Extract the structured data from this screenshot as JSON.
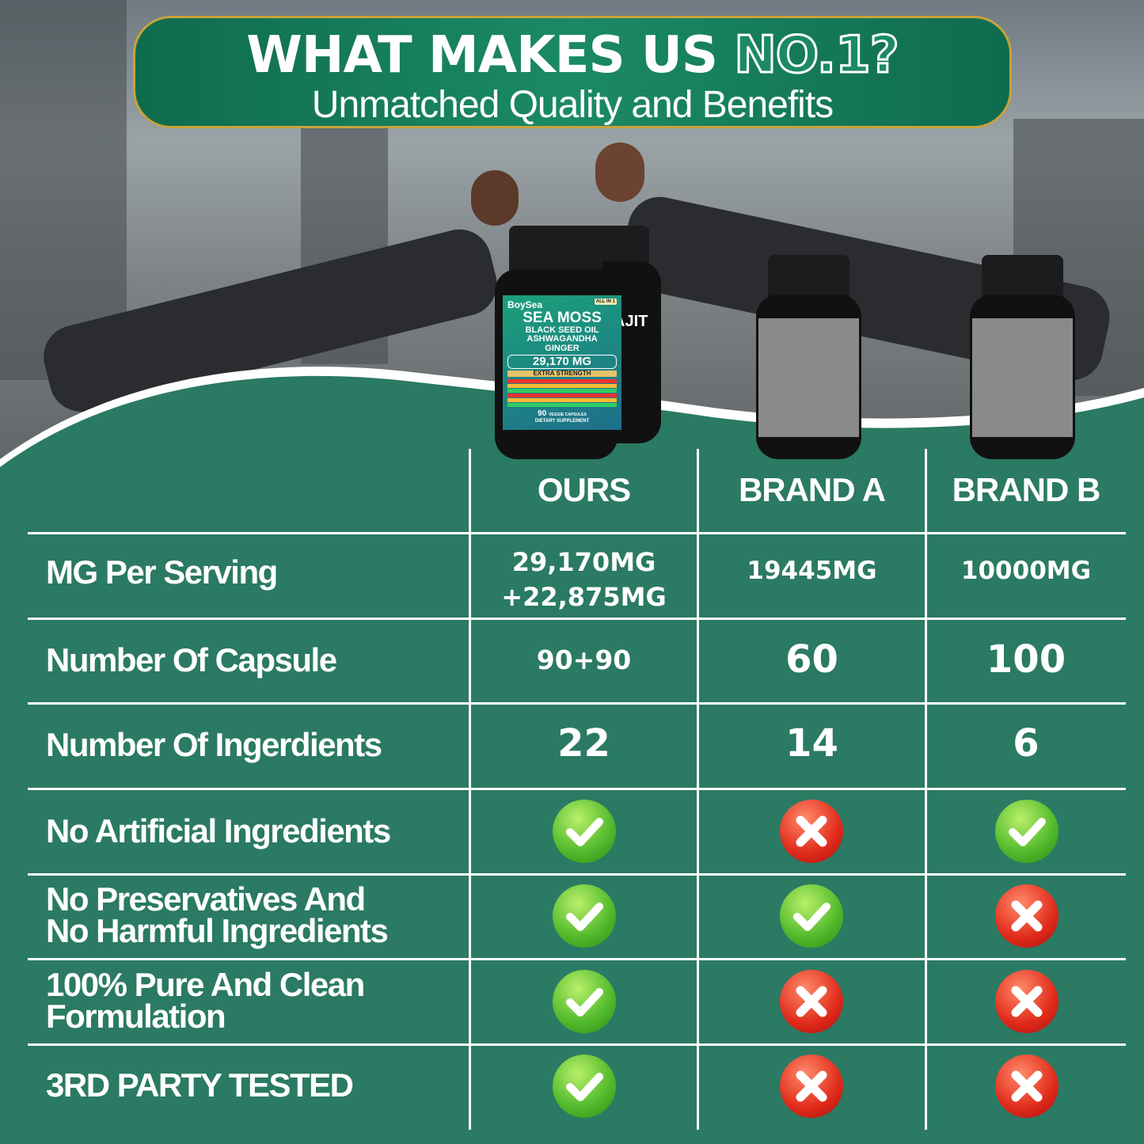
{
  "header": {
    "title": "WHAT MAKES US",
    "title_highlight": "NO.1?",
    "subtitle": "Unmatched Quality and Benefits"
  },
  "product": {
    "brand": "BoySea",
    "name": "SEA MOSS",
    "line2": "BLACK SEED OIL",
    "line3": "ASHWAGANDHA",
    "line4": "GINGER",
    "dose": "29,170 MG",
    "strength": "EXTRA STRENGTH",
    "count": "90",
    "count_label": "VEGGIE CAPSULES",
    "type": "DIETARY SUPPLEMENT",
    "badge": "ALL IN 1",
    "second_bottle": "AJIT"
  },
  "columns": [
    "OURS",
    "BRAND A",
    "BRAND B"
  ],
  "rows": [
    {
      "label": "MG Per Serving",
      "values": [
        "29,170MG",
        "+22,875MG",
        "19445MG",
        "10000MG"
      ]
    },
    {
      "label": "Number Of Capsule",
      "values": [
        "90+90",
        "60",
        "100"
      ]
    },
    {
      "label": "Number Of Ingerdients",
      "values": [
        "22",
        "14",
        "6"
      ]
    },
    {
      "label": "No Artificial Ingredients",
      "checks": [
        true,
        false,
        true
      ]
    },
    {
      "label": "No Preservatives And",
      "label2": "No Harmful Ingredients",
      "checks": [
        true,
        true,
        false
      ]
    },
    {
      "label": "100% Pure And Clean",
      "label2": "Formulation",
      "checks": [
        true,
        false,
        false
      ]
    },
    {
      "label": "3RD PARTY TESTED",
      "checks": [
        true,
        false,
        false
      ]
    }
  ],
  "colors": {
    "green": "#2b7a63",
    "check": "#4fb82a",
    "cross": "#e02a1a",
    "banner_border": "#c9a23a"
  }
}
